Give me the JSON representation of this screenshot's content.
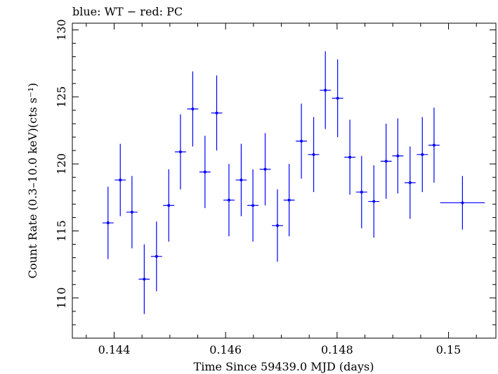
{
  "chart_data": {
    "type": "scatter",
    "title": "blue: WT − red: PC",
    "xlabel": "Time Since 59439.0 MJD (days)",
    "ylabel": "Count Rate (0.3–10.0 keV)(cts s⁻¹)",
    "xlim": [
      0.14325,
      0.15085
    ],
    "ylim": [
      107.0,
      130.5
    ],
    "x_ticks": [
      0.144,
      0.146,
      0.148,
      0.15
    ],
    "x_tick_labels": [
      "0.144",
      "0.146",
      "0.148",
      "0.15"
    ],
    "y_ticks": [
      110,
      115,
      120,
      125,
      130
    ],
    "y_tick_labels": [
      "110",
      "115",
      "120",
      "125",
      "130"
    ],
    "grid": false,
    "series": [
      {
        "name": "WT",
        "color": "#0000ff",
        "points": [
          {
            "x": 0.14389,
            "xerr": 0.0001,
            "y": 115.6,
            "yerr": 2.7
          },
          {
            "x": 0.14411,
            "xerr": 0.0001,
            "y": 118.8,
            "yerr": 2.7
          },
          {
            "x": 0.14432,
            "xerr": 0.0001,
            "y": 116.4,
            "yerr": 2.7
          },
          {
            "x": 0.14454,
            "xerr": 0.0001,
            "y": 111.4,
            "yerr": 2.6
          },
          {
            "x": 0.14476,
            "xerr": 0.0001,
            "y": 113.1,
            "yerr": 2.6
          },
          {
            "x": 0.14498,
            "xerr": 0.0001,
            "y": 116.9,
            "yerr": 2.7
          },
          {
            "x": 0.14519,
            "xerr": 0.0001,
            "y": 120.9,
            "yerr": 2.8
          },
          {
            "x": 0.14541,
            "xerr": 0.0001,
            "y": 124.1,
            "yerr": 2.8
          },
          {
            "x": 0.14563,
            "xerr": 0.0001,
            "y": 119.4,
            "yerr": 2.7
          },
          {
            "x": 0.14584,
            "xerr": 0.0001,
            "y": 123.8,
            "yerr": 2.8
          },
          {
            "x": 0.14606,
            "xerr": 0.0001,
            "y": 117.3,
            "yerr": 2.7
          },
          {
            "x": 0.14628,
            "xerr": 0.0001,
            "y": 118.8,
            "yerr": 2.7
          },
          {
            "x": 0.14649,
            "xerr": 0.0001,
            "y": 116.9,
            "yerr": 2.7
          },
          {
            "x": 0.14671,
            "xerr": 0.0001,
            "y": 119.6,
            "yerr": 2.7
          },
          {
            "x": 0.14693,
            "xerr": 0.0001,
            "y": 115.4,
            "yerr": 2.7
          },
          {
            "x": 0.14714,
            "xerr": 0.0001,
            "y": 117.3,
            "yerr": 2.7
          },
          {
            "x": 0.14736,
            "xerr": 0.0001,
            "y": 121.7,
            "yerr": 2.8
          },
          {
            "x": 0.14758,
            "xerr": 0.0001,
            "y": 120.7,
            "yerr": 2.8
          },
          {
            "x": 0.14779,
            "xerr": 0.0001,
            "y": 125.5,
            "yerr": 2.9
          },
          {
            "x": 0.14801,
            "xerr": 0.0001,
            "y": 124.9,
            "yerr": 2.9
          },
          {
            "x": 0.14823,
            "xerr": 0.0001,
            "y": 120.5,
            "yerr": 2.8
          },
          {
            "x": 0.14844,
            "xerr": 0.0001,
            "y": 117.9,
            "yerr": 2.7
          },
          {
            "x": 0.14866,
            "xerr": 0.0001,
            "y": 117.2,
            "yerr": 2.7
          },
          {
            "x": 0.14888,
            "xerr": 0.0001,
            "y": 120.2,
            "yerr": 2.8
          },
          {
            "x": 0.14909,
            "xerr": 0.0001,
            "y": 120.6,
            "yerr": 2.8
          },
          {
            "x": 0.14931,
            "xerr": 0.0001,
            "y": 118.6,
            "yerr": 2.7
          },
          {
            "x": 0.14953,
            "xerr": 0.0001,
            "y": 120.7,
            "yerr": 2.8
          },
          {
            "x": 0.14974,
            "xerr": 0.0001,
            "y": 121.4,
            "yerr": 2.8
          },
          {
            "x": 0.15025,
            "xerr": 0.0004,
            "y": 117.1,
            "yerr": 2.0
          }
        ]
      }
    ]
  }
}
